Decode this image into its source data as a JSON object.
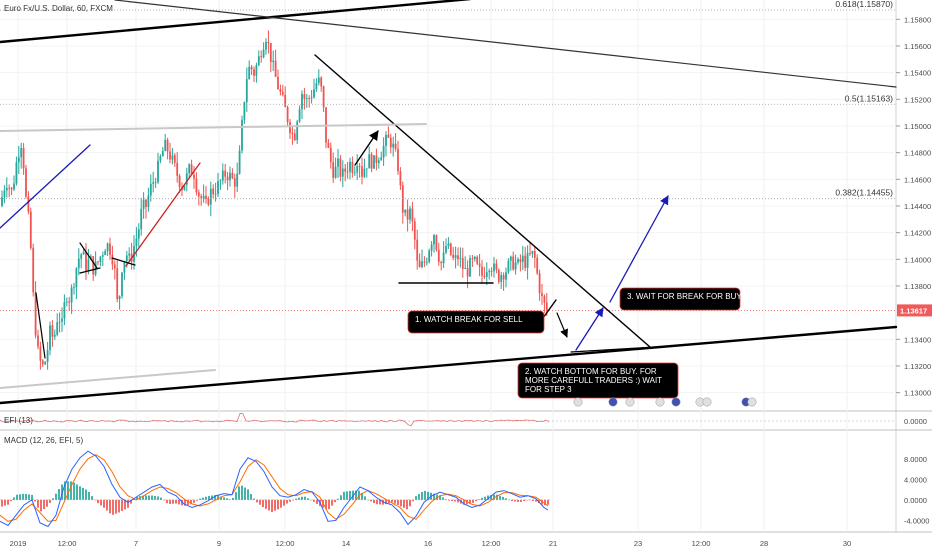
{
  "header": {
    "title": "Euro Fx/U.S. Dollar, 60, FXCM"
  },
  "colors": {
    "bull": "#26a69a",
    "bear": "#ef5350",
    "trend": "#000000",
    "blue": "#1a1ab8",
    "red_trend": "#cc2222",
    "gray_line": "#c8c8c8",
    "macd": "#2962ff",
    "signal": "#ff6d00",
    "price_tag": "#f05a5a",
    "note_bg": "#000000",
    "note_border": "#e53935"
  },
  "chart_data": [
    {
      "type": "candlestick",
      "title": "Euro Fx/U.S. Dollar, 60, FXCM",
      "ylim": [
        1.129,
        1.159
      ],
      "x_ticks": [
        "2019",
        "12:00",
        "7",
        "9",
        "12:00",
        "14",
        "16",
        "12:00",
        "21",
        "23",
        "12:00",
        "28",
        "30"
      ],
      "y_ticks": [
        "1.15800",
        "1.15600",
        "1.15400",
        "1.15200",
        "1.15000",
        "1.14800",
        "1.14600",
        "1.14400",
        "1.14200",
        "1.14000",
        "1.13800",
        "1.13400",
        "1.13200",
        "1.13000"
      ],
      "last_price": "1.13617",
      "price_path": [
        [
          0,
          1.144
        ],
        [
          6,
          1.146
        ],
        [
          12,
          1.145
        ],
        [
          18,
          1.148
        ],
        [
          22,
          1.149
        ],
        [
          26,
          1.1445
        ],
        [
          30,
          1.142
        ],
        [
          34,
          1.136
        ],
        [
          38,
          1.133
        ],
        [
          42,
          1.1318
        ],
        [
          46,
          1.1325
        ],
        [
          50,
          1.1345
        ],
        [
          54,
          1.134
        ],
        [
          58,
          1.136
        ],
        [
          62,
          1.135
        ],
        [
          66,
          1.1375
        ],
        [
          70,
          1.137
        ],
        [
          74,
          1.1385
        ],
        [
          78,
          1.14
        ],
        [
          82,
          1.1405
        ],
        [
          86,
          1.1395
        ],
        [
          90,
          1.14
        ],
        [
          94,
          1.1392
        ],
        [
          98,
          1.1398
        ],
        [
          102,
          1.1405
        ],
        [
          106,
          1.1412
        ],
        [
          110,
          1.1408
        ],
        [
          114,
          1.1398
        ],
        [
          118,
          1.136
        ],
        [
          122,
          1.1395
        ],
        [
          126,
          1.1405
        ],
        [
          130,
          1.1398
        ],
        [
          134,
          1.141
        ],
        [
          138,
          1.142
        ],
        [
          142,
          1.1438
        ],
        [
          146,
          1.144
        ],
        [
          150,
          1.1452
        ],
        [
          154,
          1.146
        ],
        [
          158,
          1.1468
        ],
        [
          162,
          1.148
        ],
        [
          166,
          1.1485
        ],
        [
          170,
          1.1478
        ],
        [
          174,
          1.147
        ],
        [
          178,
          1.1462
        ],
        [
          182,
          1.1455
        ],
        [
          186,
          1.146
        ],
        [
          190,
          1.1468
        ],
        [
          194,
          1.1465
        ],
        [
          198,
          1.145
        ],
        [
          202,
          1.1445
        ],
        [
          206,
          1.144
        ],
        [
          210,
          1.145
        ],
        [
          214,
          1.1452
        ],
        [
          218,
          1.1455
        ],
        [
          222,
          1.146
        ],
        [
          226,
          1.1465
        ],
        [
          230,
          1.1462
        ],
        [
          234,
          1.1458
        ],
        [
          238,
          1.1462
        ],
        [
          242,
          1.15
        ],
        [
          246,
          1.1535
        ],
        [
          250,
          1.1545
        ],
        [
          254,
          1.154
        ],
        [
          258,
          1.1548
        ],
        [
          262,
          1.156
        ],
        [
          266,
          1.1568
        ],
        [
          270,
          1.1555
        ],
        [
          274,
          1.154
        ],
        [
          278,
          1.153
        ],
        [
          282,
          1.152
        ],
        [
          286,
          1.151
        ],
        [
          290,
          1.15
        ],
        [
          294,
          1.149
        ],
        [
          298,
          1.1512
        ],
        [
          302,
          1.1525
        ],
        [
          306,
          1.1518
        ],
        [
          310,
          1.1522
        ],
        [
          314,
          1.1528
        ],
        [
          318,
          1.1535
        ],
        [
          322,
          1.1525
        ],
        [
          326,
          1.149
        ],
        [
          330,
          1.1475
        ],
        [
          334,
          1.1465
        ],
        [
          338,
          1.147
        ],
        [
          342,
          1.1462
        ],
        [
          346,
          1.1468
        ],
        [
          350,
          1.1472
        ],
        [
          354,
          1.1468
        ],
        [
          358,
          1.1478
        ],
        [
          362,
          1.1465
        ],
        [
          366,
          1.1472
        ],
        [
          370,
          1.1475
        ],
        [
          374,
          1.1472
        ],
        [
          378,
          1.1478
        ],
        [
          382,
          1.1482
        ],
        [
          386,
          1.1488
        ],
        [
          390,
          1.149
        ],
        [
          394,
          1.1482
        ],
        [
          398,
          1.147
        ],
        [
          402,
          1.144
        ],
        [
          406,
          1.143
        ],
        [
          410,
          1.1435
        ],
        [
          414,
          1.142
        ],
        [
          418,
          1.139
        ],
        [
          422,
          1.1395
        ],
        [
          426,
          1.14
        ],
        [
          430,
          1.1412
        ],
        [
          434,
          1.142
        ],
        [
          438,
          1.1405
        ],
        [
          442,
          1.1395
        ],
        [
          446,
          1.141
        ],
        [
          450,
          1.1405
        ],
        [
          454,
          1.1398
        ],
        [
          458,
          1.1402
        ],
        [
          462,
          1.1395
        ],
        [
          466,
          1.139
        ],
        [
          470,
          1.1395
        ],
        [
          474,
          1.1398
        ],
        [
          478,
          1.1392
        ],
        [
          482,
          1.1388
        ],
        [
          486,
          1.1394
        ],
        [
          490,
          1.1398
        ],
        [
          494,
          1.1392
        ],
        [
          498,
          1.1387
        ],
        [
          502,
          1.139
        ],
        [
          506,
          1.1392
        ],
        [
          510,
          1.1396
        ],
        [
          514,
          1.1398
        ],
        [
          518,
          1.1395
        ],
        [
          522,
          1.14
        ],
        [
          526,
          1.1398
        ],
        [
          530,
          1.1402
        ],
        [
          534,
          1.1404
        ],
        [
          538,
          1.1385
        ],
        [
          542,
          1.137
        ],
        [
          546,
          1.1362
        ],
        [
          550,
          1.1358
        ]
      ],
      "fib_levels": [
        {
          "label": "0.618(1.15870)",
          "value": 1.1587
        },
        {
          "label": "0.5(1.15163)",
          "value": 1.15163
        },
        {
          "label": "0.382(1.14455)",
          "value": 1.14455
        }
      ],
      "annotations": [
        "1. WATCH BREAK FOR SELL",
        "2. WATCH BOTTOM FOR BUY. FOR MORE CAREFULL TRADERS :) WAIT FOR STEP 3",
        "3. WAIT FOR BREAK FOR BUY"
      ]
    },
    {
      "type": "line",
      "title": "EFI (13)",
      "y_ticks": [
        "0.0000"
      ]
    },
    {
      "type": "bar",
      "title": "MACD (12, 26, EFI, 5)",
      "y_ticks": [
        "8.0000",
        "4.0000",
        "0.0000",
        "-4.0000"
      ],
      "ylim": [
        -5.5,
        10.5
      ],
      "macd_path": [
        [
          0,
          -4.2
        ],
        [
          8,
          -5.0
        ],
        [
          16,
          -3.0
        ],
        [
          24,
          -1.0
        ],
        [
          32,
          0.0
        ],
        [
          40,
          -4.5
        ],
        [
          48,
          -5.2
        ],
        [
          56,
          -3.0
        ],
        [
          64,
          2.5
        ],
        [
          72,
          6.0
        ],
        [
          80,
          8.2
        ],
        [
          88,
          9.5
        ],
        [
          96,
          8.5
        ],
        [
          104,
          6.5
        ],
        [
          112,
          3.0
        ],
        [
          120,
          0.5
        ],
        [
          128,
          -0.5
        ],
        [
          136,
          0.5
        ],
        [
          144,
          1.5
        ],
        [
          152,
          2.5
        ],
        [
          160,
          3.0
        ],
        [
          168,
          1.5
        ],
        [
          176,
          0.8
        ],
        [
          184,
          -0.8
        ],
        [
          192,
          -1.5
        ],
        [
          200,
          -1.0
        ],
        [
          208,
          -0.2
        ],
        [
          216,
          0.8
        ],
        [
          224,
          1.2
        ],
        [
          232,
          1.0
        ],
        [
          240,
          6.0
        ],
        [
          248,
          8.2
        ],
        [
          256,
          7.5
        ],
        [
          264,
          5.5
        ],
        [
          272,
          2.5
        ],
        [
          280,
          0.8
        ],
        [
          288,
          0.5
        ],
        [
          296,
          1.0
        ],
        [
          304,
          2.0
        ],
        [
          312,
          1.5
        ],
        [
          320,
          -0.5
        ],
        [
          328,
          -4.2
        ],
        [
          336,
          -4.0
        ],
        [
          344,
          -1.5
        ],
        [
          352,
          0.5
        ],
        [
          360,
          2.5
        ],
        [
          368,
          1.8
        ],
        [
          376,
          0.5
        ],
        [
          384,
          -0.5
        ],
        [
          392,
          -1.0
        ],
        [
          400,
          -2.5
        ],
        [
          408,
          -4.8
        ],
        [
          416,
          -3.2
        ],
        [
          424,
          -0.5
        ],
        [
          432,
          0.8
        ],
        [
          440,
          1.5
        ],
        [
          448,
          1.0
        ],
        [
          456,
          0.5
        ],
        [
          464,
          -0.8
        ],
        [
          472,
          -1.5
        ],
        [
          480,
          -1.0
        ],
        [
          488,
          0.2
        ],
        [
          496,
          1.5
        ],
        [
          504,
          1.8
        ],
        [
          512,
          1.2
        ],
        [
          520,
          0.5
        ],
        [
          528,
          0.8
        ],
        [
          536,
          0.2
        ],
        [
          544,
          -1.5
        ],
        [
          548,
          -2.0
        ]
      ],
      "signal_path": [
        [
          0,
          -3.0
        ],
        [
          8,
          -4.2
        ],
        [
          16,
          -3.8
        ],
        [
          24,
          -2.0
        ],
        [
          32,
          -0.8
        ],
        [
          40,
          -2.5
        ],
        [
          48,
          -4.2
        ],
        [
          56,
          -4.0
        ],
        [
          64,
          -0.5
        ],
        [
          72,
          3.0
        ],
        [
          80,
          6.0
        ],
        [
          88,
          8.0
        ],
        [
          96,
          8.8
        ],
        [
          104,
          7.8
        ],
        [
          112,
          5.5
        ],
        [
          120,
          2.5
        ],
        [
          128,
          0.8
        ],
        [
          136,
          0.0
        ],
        [
          144,
          0.8
        ],
        [
          152,
          1.8
        ],
        [
          160,
          2.5
        ],
        [
          168,
          2.2
        ],
        [
          176,
          1.4
        ],
        [
          184,
          0.2
        ],
        [
          192,
          -0.8
        ],
        [
          200,
          -1.2
        ],
        [
          208,
          -0.8
        ],
        [
          216,
          0.0
        ],
        [
          224,
          0.8
        ],
        [
          232,
          1.0
        ],
        [
          240,
          3.5
        ],
        [
          248,
          6.5
        ],
        [
          256,
          7.8
        ],
        [
          264,
          6.8
        ],
        [
          272,
          4.5
        ],
        [
          280,
          2.2
        ],
        [
          288,
          1.0
        ],
        [
          296,
          0.8
        ],
        [
          304,
          1.4
        ],
        [
          312,
          1.6
        ],
        [
          320,
          0.5
        ],
        [
          328,
          -2.5
        ],
        [
          336,
          -3.8
        ],
        [
          344,
          -2.8
        ],
        [
          352,
          -1.0
        ],
        [
          360,
          1.0
        ],
        [
          368,
          1.8
        ],
        [
          376,
          1.2
        ],
        [
          384,
          0.3
        ],
        [
          392,
          -0.6
        ],
        [
          400,
          -1.5
        ],
        [
          408,
          -3.2
        ],
        [
          416,
          -3.8
        ],
        [
          424,
          -2.0
        ],
        [
          432,
          -0.3
        ],
        [
          440,
          0.8
        ],
        [
          448,
          1.1
        ],
        [
          456,
          0.8
        ],
        [
          464,
          0.0
        ],
        [
          472,
          -0.9
        ],
        [
          480,
          -1.2
        ],
        [
          488,
          -0.5
        ],
        [
          496,
          0.6
        ],
        [
          504,
          1.4
        ],
        [
          512,
          1.4
        ],
        [
          520,
          0.9
        ],
        [
          528,
          0.8
        ],
        [
          536,
          0.5
        ],
        [
          544,
          -0.6
        ],
        [
          548,
          -1.2
        ]
      ]
    }
  ]
}
